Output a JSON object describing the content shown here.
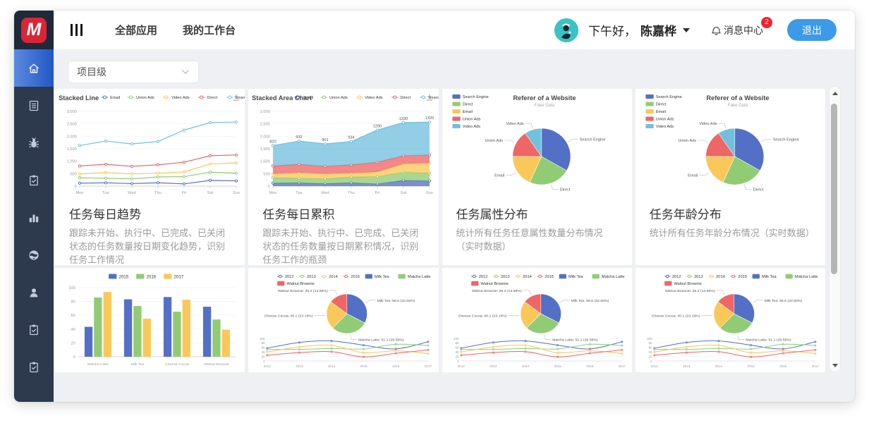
{
  "header": {
    "logo_letter": "M",
    "nav": [
      "全部应用",
      "我的工作台"
    ],
    "greeting_prefix": "下午好，",
    "user_name": "陈嘉桦",
    "message_center_label": "消息中心",
    "message_count": "2",
    "logout_label": "退出"
  },
  "sidebar": {
    "items": [
      "home",
      "document",
      "bug",
      "todo-clipboard",
      "bar-report",
      "globe",
      "user",
      "task-clipboard",
      "approval-clipboard"
    ],
    "active_index": 0,
    "active_color": "#2f63cf"
  },
  "filter": {
    "value": "项目级"
  },
  "cards": [
    {
      "title": "任务每日趋势",
      "description": "跟踪未开始、执行中、已完成、已关闭状态的任务数量按日期变化趋势，识别任务工作情况",
      "chart": "stacked_line"
    },
    {
      "title": "任务每日累积",
      "description": "跟踪未开始、执行中、已完成、已关闭状态的任务数量按日期累积情况，识别任务工作的瓶颈",
      "chart": "stacked_area"
    },
    {
      "title": "任务属性分布",
      "description": "统计所有任务任意属性数量分布情况（实时数据）",
      "chart": "pie_referer"
    },
    {
      "title": "任务年龄分布",
      "description": "统计所有任务年龄分布情况（实时数据）",
      "chart": "pie_referer"
    },
    {
      "chart": "bar_dataset"
    },
    {
      "chart": "pie_line_combo"
    },
    {
      "chart": "pie_line_combo"
    },
    {
      "chart": "pie_line_combo"
    }
  ],
  "chart_data": [
    {
      "id": "stacked_line",
      "type": "stacked-line",
      "title": "Stacked Line",
      "categories": [
        "Mon",
        "Tue",
        "Wed",
        "Thu",
        "Fri",
        "Sat",
        "Sun"
      ],
      "series": [
        {
          "name": "Email",
          "color": "#5470c6",
          "values": [
            120,
            132,
            101,
            134,
            90,
            230,
            210
          ]
        },
        {
          "name": "Union Ads",
          "color": "#91cc75",
          "values": [
            220,
            182,
            191,
            234,
            290,
            330,
            310
          ]
        },
        {
          "name": "Video Ads",
          "color": "#fac858",
          "values": [
            150,
            232,
            201,
            154,
            190,
            330,
            410
          ]
        },
        {
          "name": "Direct",
          "color": "#ee6666",
          "values": [
            320,
            332,
            301,
            334,
            390,
            330,
            320
          ]
        },
        {
          "name": "Search Engine",
          "color": "#73c0de",
          "values": [
            820,
            932,
            901,
            934,
            1290,
            1330,
            1320
          ]
        }
      ],
      "ylim": [
        0,
        3000
      ],
      "y_interval": 500,
      "grid": true,
      "legend_position": "top"
    },
    {
      "id": "stacked_area",
      "type": "stacked-area",
      "title": "Stacked Area Chart",
      "categories": [
        "Mon",
        "Tue",
        "Wed",
        "Thu",
        "Fri",
        "Sat",
        "Sun"
      ],
      "series": [
        {
          "name": "Email",
          "color": "#5470c6",
          "values": [
            120,
            132,
            101,
            134,
            90,
            230,
            210
          ]
        },
        {
          "name": "Union Ads",
          "color": "#91cc75",
          "values": [
            220,
            182,
            191,
            234,
            290,
            330,
            310
          ]
        },
        {
          "name": "Video Ads",
          "color": "#fac858",
          "values": [
            150,
            232,
            201,
            154,
            190,
            330,
            410
          ]
        },
        {
          "name": "Direct",
          "color": "#ee6666",
          "values": [
            320,
            332,
            301,
            334,
            390,
            330,
            320
          ]
        },
        {
          "name": "Search Engine",
          "color": "#73c0de",
          "values": [
            820,
            932,
            901,
            934,
            1290,
            1330,
            1320
          ]
        }
      ],
      "labeled_series": "Search Engine",
      "ylim": [
        0,
        3000
      ],
      "y_interval": 500,
      "grid": true,
      "legend_position": "top"
    },
    {
      "id": "pie_referer",
      "type": "pie",
      "title": "Referer of a Website",
      "subtitle": "Fake Data",
      "legend_position": "top-left",
      "slices": [
        {
          "name": "Search Engine",
          "value": 1048,
          "color": "#5470c6"
        },
        {
          "name": "Direct",
          "value": 735,
          "color": "#91cc75"
        },
        {
          "name": "Email",
          "value": 580,
          "color": "#fac858"
        },
        {
          "name": "Union Ads",
          "value": 484,
          "color": "#ee6666"
        },
        {
          "name": "Video Ads",
          "value": 300,
          "color": "#73c0de"
        }
      ]
    },
    {
      "id": "bar_dataset",
      "type": "bar",
      "categories": [
        "Matcha Latte",
        "Milk Tea",
        "Cheese Cocoa",
        "Walnut Brownie"
      ],
      "series": [
        {
          "name": "2015",
          "color": "#5470c6",
          "values": [
            43.3,
            83.1,
            86.4,
            72.4
          ]
        },
        {
          "name": "2016",
          "color": "#91cc75",
          "values": [
            85.8,
            73.4,
            65.2,
            53.9
          ]
        },
        {
          "name": "2017",
          "color": "#fac858",
          "values": [
            93.7,
            55.1,
            82.5,
            39.1
          ]
        }
      ],
      "ylim": [
        0,
        100
      ],
      "y_interval": 20,
      "grid": true,
      "legend_position": "top-center"
    },
    {
      "id": "pie_line_combo",
      "type": "pie-line",
      "line_legend": [
        {
          "name": "2012",
          "color": "#5470c6"
        },
        {
          "name": "2013",
          "color": "#91cc75"
        },
        {
          "name": "2014",
          "color": "#fac858"
        },
        {
          "name": "2015",
          "color": "#ee6666"
        }
      ],
      "x": [
        "2012",
        "2013",
        "2014",
        "2015",
        "2016",
        "2017"
      ],
      "series": [
        {
          "name": "Milk Tea",
          "color": "#5470c6",
          "values": [
            56.5,
            82.1,
            88.7,
            70.1,
            53.4,
            85.1
          ]
        },
        {
          "name": "Matcha Latte",
          "color": "#91cc75",
          "values": [
            51.1,
            51.4,
            55.1,
            53.3,
            73.8,
            68.7
          ]
        },
        {
          "name": "Cheese Cocoa",
          "color": "#fac858",
          "values": [
            40.1,
            62.2,
            69.5,
            36.4,
            45.2,
            32.5
          ]
        },
        {
          "name": "Walnut Brownie",
          "color": "#ee6666",
          "values": [
            25.2,
            37.1,
            41.2,
            18,
            33.9,
            49.1
          ]
        }
      ],
      "pie": {
        "slices": [
          {
            "name": "Milk Tea",
            "value": 56.5,
            "pct": "32.68%"
          },
          {
            "name": "Matcha Latte",
            "value": 51.1,
            "pct": "29.56%"
          },
          {
            "name": "Cheese Cocoa",
            "value": 40.1,
            "pct": "23.19%"
          },
          {
            "name": "Walnut Brownie",
            "value": 25.2,
            "pct": "14.58%"
          }
        ]
      },
      "ylim": [
        0,
        100
      ],
      "y_interval": 20,
      "grid": true
    }
  ]
}
